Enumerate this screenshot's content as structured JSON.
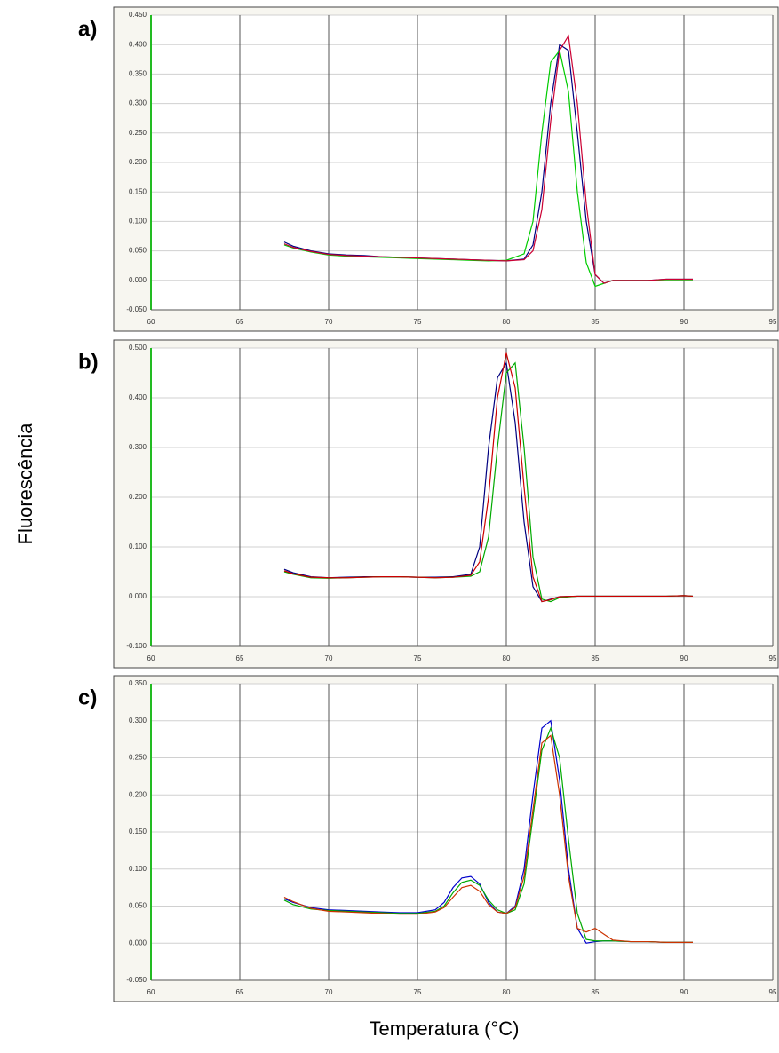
{
  "y_axis_title": "Fluorescência",
  "x_axis_title": "Temperatura (°C)",
  "chart_data": [
    {
      "type": "line",
      "label": "a)",
      "x": [
        67.5,
        68,
        69,
        70,
        71,
        72,
        73,
        74,
        75,
        76,
        77,
        78,
        79,
        80,
        81,
        81.5,
        82,
        82.5,
        83,
        83.5,
        84,
        84.5,
        85,
        85.5,
        86,
        87,
        88,
        89,
        90,
        90.5
      ],
      "series": [
        {
          "color": "#000080",
          "values": [
            0.065,
            0.058,
            0.05,
            0.045,
            0.043,
            0.042,
            0.04,
            0.039,
            0.038,
            0.037,
            0.036,
            0.035,
            0.034,
            0.033,
            0.036,
            0.06,
            0.15,
            0.3,
            0.4,
            0.39,
            0.25,
            0.1,
            0.01,
            -0.005,
            0,
            0,
            0,
            0.002,
            0.002,
            0.002
          ]
        },
        {
          "color": "#00cc00",
          "values": [
            0.06,
            0.055,
            0.048,
            0.043,
            0.041,
            0.04,
            0.039,
            0.038,
            0.037,
            0.036,
            0.035,
            0.034,
            0.033,
            0.034,
            0.045,
            0.1,
            0.25,
            0.37,
            0.39,
            0.32,
            0.15,
            0.03,
            -0.01,
            -0.005,
            0,
            0,
            0,
            0.001,
            0.001,
            0.001
          ]
        },
        {
          "color": "#cc0033",
          "values": [
            0.062,
            0.056,
            0.049,
            0.044,
            0.042,
            0.041,
            0.04,
            0.039,
            0.038,
            0.037,
            0.036,
            0.035,
            0.034,
            0.033,
            0.035,
            0.05,
            0.12,
            0.27,
            0.39,
            0.415,
            0.3,
            0.13,
            0.01,
            -0.005,
            0,
            0,
            0,
            0.002,
            0.002,
            0.002
          ]
        }
      ],
      "xlim": [
        60,
        95
      ],
      "ylim": [
        -0.05,
        0.45
      ],
      "xticks": [
        60,
        65,
        70,
        75,
        80,
        85,
        90,
        95
      ],
      "yticks": [
        {
          "value": -0.05,
          "label": "-0.050"
        },
        {
          "value": 0,
          "label": "0.000"
        },
        {
          "value": 0.05,
          "label": "0.050"
        },
        {
          "value": 0.1,
          "label": "0.100"
        },
        {
          "value": 0.15,
          "label": "0.150"
        },
        {
          "value": 0.2,
          "label": "0.200"
        },
        {
          "value": 0.25,
          "label": "0.250"
        },
        {
          "value": 0.3,
          "label": "0.300"
        },
        {
          "value": 0.35,
          "label": "0.350"
        },
        {
          "value": 0.4,
          "label": "0.400"
        },
        {
          "value": 0.45,
          "label": "0.450"
        }
      ],
      "grid": true
    },
    {
      "type": "line",
      "label": "b)",
      "x": [
        67.5,
        68,
        69,
        70,
        71,
        72,
        73,
        74,
        75,
        76,
        77,
        78,
        78.5,
        79,
        79.5,
        80,
        80.5,
        81,
        81.5,
        82,
        82.5,
        83,
        84,
        85,
        86,
        87,
        88,
        89,
        90,
        90.5
      ],
      "series": [
        {
          "color": "#000080",
          "values": [
            0.055,
            0.048,
            0.04,
            0.038,
            0.039,
            0.04,
            0.04,
            0.04,
            0.039,
            0.039,
            0.04,
            0.045,
            0.1,
            0.3,
            0.44,
            0.47,
            0.35,
            0.15,
            0.02,
            -0.01,
            -0.005,
            0,
            0.001,
            0.001,
            0.001,
            0.001,
            0.001,
            0.001,
            0.002,
            0.001
          ]
        },
        {
          "color": "#00aa00",
          "values": [
            0.05,
            0.045,
            0.038,
            0.037,
            0.038,
            0.039,
            0.04,
            0.04,
            0.039,
            0.038,
            0.039,
            0.041,
            0.05,
            0.12,
            0.3,
            0.45,
            0.47,
            0.3,
            0.08,
            -0.005,
            -0.01,
            -0.002,
            0.001,
            0.001,
            0.001,
            0.001,
            0.001,
            0.001,
            0.002,
            0.001
          ]
        },
        {
          "color": "#cc0000",
          "values": [
            0.052,
            0.046,
            0.039,
            0.038,
            0.038,
            0.039,
            0.04,
            0.04,
            0.039,
            0.038,
            0.039,
            0.043,
            0.07,
            0.2,
            0.4,
            0.49,
            0.42,
            0.22,
            0.04,
            -0.01,
            -0.006,
            0,
            0.001,
            0.001,
            0.001,
            0.001,
            0.001,
            0.001,
            0.002,
            0.001
          ]
        }
      ],
      "xlim": [
        60,
        95
      ],
      "ylim": [
        -0.1,
        0.5
      ],
      "xticks": [
        60,
        65,
        70,
        75,
        80,
        85,
        90,
        95
      ],
      "yticks": [
        {
          "value": -0.1,
          "label": "-0.100"
        },
        {
          "value": 0,
          "label": "0.000"
        },
        {
          "value": 0.1,
          "label": "0.100"
        },
        {
          "value": 0.2,
          "label": "0.200"
        },
        {
          "value": 0.3,
          "label": "0.300"
        },
        {
          "value": 0.4,
          "label": "0.400"
        },
        {
          "value": 0.5,
          "label": "0.500"
        }
      ],
      "grid": true
    },
    {
      "type": "line",
      "label": "c)",
      "x": [
        67.5,
        68,
        69,
        70,
        71,
        72,
        73,
        74,
        75,
        76,
        76.5,
        77,
        77.5,
        78,
        78.5,
        79,
        79.5,
        80,
        80.5,
        81,
        81.5,
        82,
        82.5,
        83,
        83.5,
        84,
        84.5,
        85,
        85.5,
        86,
        87,
        88,
        89,
        90,
        90.5
      ],
      "series": [
        {
          "color": "#0000cc",
          "values": [
            0.06,
            0.055,
            0.048,
            0.045,
            0.044,
            0.043,
            0.042,
            0.041,
            0.041,
            0.045,
            0.055,
            0.075,
            0.088,
            0.09,
            0.08,
            0.055,
            0.042,
            0.04,
            0.05,
            0.1,
            0.2,
            0.29,
            0.3,
            0.22,
            0.1,
            0.02,
            0,
            0.002,
            0.003,
            0.003,
            0.002,
            0.002,
            0.001,
            0.001,
            0.001
          ]
        },
        {
          "color": "#00aa00",
          "values": [
            0.058,
            0.052,
            0.046,
            0.044,
            0.043,
            0.042,
            0.041,
            0.04,
            0.04,
            0.043,
            0.05,
            0.068,
            0.082,
            0.085,
            0.078,
            0.058,
            0.045,
            0.04,
            0.045,
            0.08,
            0.17,
            0.26,
            0.29,
            0.25,
            0.14,
            0.04,
            0.005,
            0.003,
            0.003,
            0.003,
            0.002,
            0.002,
            0.001,
            0.001,
            0.001
          ]
        },
        {
          "color": "#cc3300",
          "values": [
            0.062,
            0.056,
            0.047,
            0.043,
            0.042,
            0.041,
            0.04,
            0.039,
            0.039,
            0.042,
            0.048,
            0.062,
            0.075,
            0.078,
            0.07,
            0.052,
            0.042,
            0.04,
            0.048,
            0.09,
            0.18,
            0.27,
            0.28,
            0.2,
            0.09,
            0.02,
            0.015,
            0.02,
            0.012,
            0.004,
            0.002,
            0.002,
            0.001,
            0.001,
            0.001
          ]
        }
      ],
      "xlim": [
        60,
        95
      ],
      "ylim": [
        -0.05,
        0.35
      ],
      "xticks": [
        60,
        65,
        70,
        75,
        80,
        85,
        90,
        95
      ],
      "yticks": [
        {
          "value": -0.05,
          "label": "-0.050"
        },
        {
          "value": 0,
          "label": "0.000"
        },
        {
          "value": 0.05,
          "label": "0.050"
        },
        {
          "value": 0.1,
          "label": "0.100"
        },
        {
          "value": 0.15,
          "label": "0.150"
        },
        {
          "value": 0.2,
          "label": "0.200"
        },
        {
          "value": 0.25,
          "label": "0.250"
        },
        {
          "value": 0.3,
          "label": "0.300"
        },
        {
          "value": 0.35,
          "label": "0.350"
        }
      ],
      "grid": true
    }
  ]
}
